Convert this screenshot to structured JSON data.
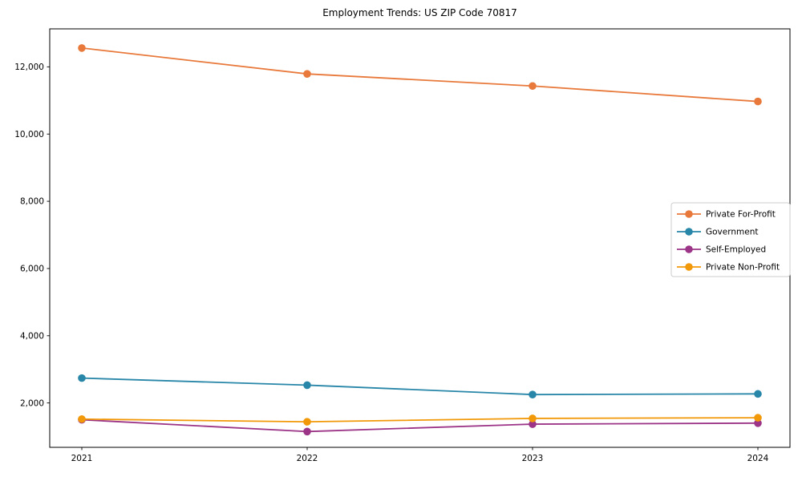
{
  "title": "Employment Trends: US ZIP Code 70817",
  "colors": {
    "private_for_profit": "#e8793b",
    "government": "#2886a8",
    "self_employed": "#9c3587",
    "private_non_profit": "#f2990a",
    "axis": "#000000",
    "legend_border": "#cccccc",
    "background": "#ffffff"
  },
  "chart_data": {
    "type": "line",
    "title": "Employment Trends: US ZIP Code 70817",
    "x": [
      2021,
      2022,
      2023,
      2024
    ],
    "xtick_labels": [
      "2021",
      "2022",
      "2023",
      "2024"
    ],
    "series": [
      {
        "name": "Private For-Profit",
        "color": "#e8793b",
        "values": [
          12560,
          11790,
          11430,
          10970
        ]
      },
      {
        "name": "Government",
        "color": "#2886a8",
        "values": [
          2740,
          2530,
          2250,
          2270
        ]
      },
      {
        "name": "Self-Employed",
        "color": "#9c3587",
        "values": [
          1500,
          1150,
          1370,
          1400
        ]
      },
      {
        "name": "Private Non-Profit",
        "color": "#f2990a",
        "values": [
          1520,
          1440,
          1540,
          1560
        ]
      }
    ],
    "xlabel": "",
    "ylabel": "",
    "ylim": [
      680,
      13130
    ],
    "yticks": [
      2000,
      4000,
      6000,
      8000,
      10000,
      12000
    ],
    "ytick_labels": [
      "2,000",
      "4,000",
      "6,000",
      "8,000",
      "10,000",
      "12,000"
    ],
    "grid": false,
    "legend_position": "center-right",
    "marker": "circle"
  }
}
